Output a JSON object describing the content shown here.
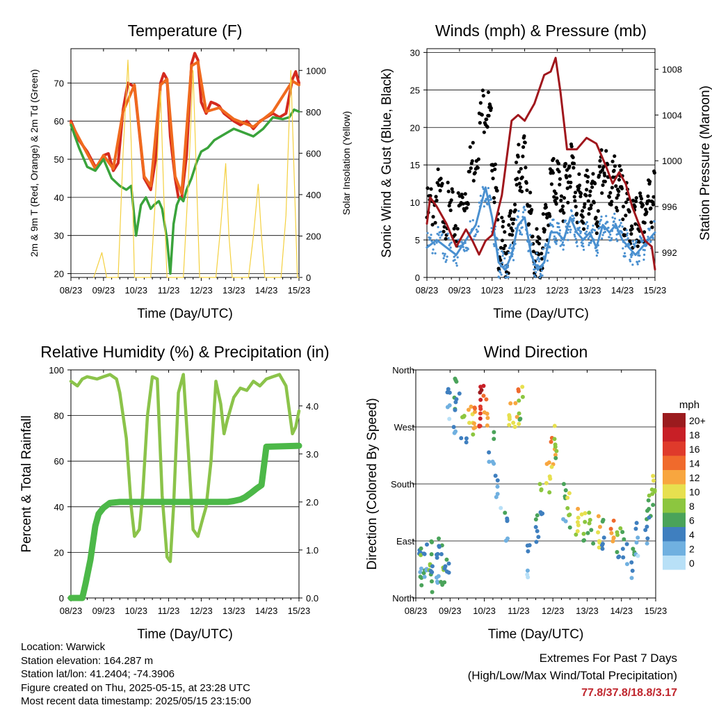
{
  "chart_data": [
    {
      "type": "line",
      "title": "Temperature (F)",
      "xlabel": "Time (Day/UTC)",
      "ylabel": "2m & 9m T (Red, Orange) & 2m Td (Green)",
      "ylabel_right": "Solar Insolation (Yellow)",
      "ylim": [
        19,
        79
      ],
      "ylim_right": [
        0,
        1105
      ],
      "yticks": [
        20,
        30,
        40,
        50,
        60,
        70
      ],
      "yticks_right": [
        0,
        200,
        400,
        600,
        800,
        1000
      ],
      "xticks": [
        "08/23",
        "09/23",
        "10/23",
        "11/23",
        "12/23",
        "13/23",
        "14/23",
        "15/23"
      ],
      "series": [
        {
          "name": "2m T",
          "color": "#d42a1f",
          "axis": "left",
          "x": [
            0,
            0.25,
            0.5,
            0.75,
            0.9,
            1.0,
            1.15,
            1.3,
            1.45,
            1.6,
            1.75,
            1.95,
            2.1,
            2.25,
            2.45,
            2.6,
            2.75,
            2.85,
            2.95,
            3.05,
            3.2,
            3.3,
            3.4,
            3.55,
            3.7,
            3.8,
            3.9,
            4.0,
            4.15,
            4.3,
            4.45,
            4.55,
            4.7,
            4.85,
            5.0,
            5.2,
            5.4,
            5.6,
            5.8,
            6.0,
            6.2,
            6.4,
            6.6,
            6.8,
            6.9,
            7.0
          ],
          "y": [
            60,
            55,
            52,
            48,
            49,
            51,
            51.5,
            47,
            49,
            63,
            70,
            69,
            57,
            45,
            42,
            50,
            70,
            72.5,
            71,
            56,
            45,
            40,
            40,
            51,
            75,
            77.8,
            76,
            65,
            62,
            65,
            64.5,
            64,
            62,
            61,
            60,
            59,
            60,
            58,
            60,
            61,
            62,
            61,
            62,
            71,
            73,
            70
          ]
        },
        {
          "name": "9m T",
          "color": "#f06a1e",
          "axis": "left",
          "x": [
            0,
            0.5,
            0.75,
            1.0,
            1.3,
            1.6,
            1.95,
            2.25,
            2.45,
            2.75,
            2.95,
            3.2,
            3.4,
            3.7,
            3.9,
            4.15,
            4.55,
            5.0,
            5.6,
            6.2,
            6.8,
            7.0
          ],
          "y": [
            59.5,
            51.5,
            47.5,
            51,
            47.5,
            62.5,
            69.5,
            45.5,
            43,
            69.5,
            71,
            45.5,
            41,
            74.5,
            75.5,
            62.5,
            63.5,
            60.5,
            58.5,
            62.5,
            70.5,
            69.5
          ]
        },
        {
          "name": "2m Td",
          "color": "#3aa33b",
          "axis": "left",
          "x": [
            0,
            0.25,
            0.5,
            0.75,
            1.0,
            1.25,
            1.5,
            1.7,
            1.85,
            2.0,
            2.15,
            2.3,
            2.45,
            2.55,
            2.7,
            2.8,
            2.95,
            3.05,
            3.15,
            3.25,
            3.35,
            3.45,
            3.55,
            3.7,
            3.85,
            4.0,
            4.2,
            4.4,
            4.6,
            4.8,
            5.0,
            5.3,
            5.6,
            5.9,
            6.2,
            6.5,
            6.7,
            6.85,
            7.0
          ],
          "y": [
            59,
            53,
            48,
            47,
            50,
            45,
            43,
            42,
            43,
            30,
            38,
            40,
            37,
            38,
            39,
            37,
            29,
            20,
            33,
            38,
            40,
            39,
            42,
            45,
            49,
            52,
            53,
            55,
            56,
            57,
            58,
            57,
            56,
            58,
            61,
            60.5,
            61,
            63,
            62.5
          ]
        },
        {
          "name": "Solar Insolation",
          "color": "#f4d03f",
          "axis": "right",
          "x": [
            0.7,
            0.95,
            1.1,
            1.25,
            1.45,
            1.6,
            1.75,
            1.85,
            1.95,
            2.1,
            2.25,
            2.45,
            2.6,
            2.75,
            2.85,
            2.95,
            3.1,
            3.25,
            3.45,
            3.6,
            3.75,
            3.85,
            3.95,
            4.1,
            4.25,
            4.45,
            4.6,
            4.75,
            4.85,
            4.95,
            5.1,
            5.25,
            5.45,
            5.6,
            5.75,
            5.85,
            5.95,
            6.1,
            6.25,
            6.45,
            6.6,
            6.75,
            6.85,
            6.95,
            7.0
          ],
          "y": [
            0,
            120,
            0,
            0,
            0,
            600,
            1050,
            650,
            0,
            0,
            0,
            0,
            400,
            900,
            400,
            0,
            0,
            0,
            0,
            450,
            1000,
            500,
            0,
            0,
            0,
            0,
            250,
            550,
            200,
            0,
            0,
            0,
            0,
            200,
            450,
            200,
            0,
            0,
            0,
            0,
            300,
            1000,
            500,
            0,
            0
          ]
        }
      ]
    },
    {
      "type": "scatter",
      "title": "Winds (mph) & Pressure (mb)",
      "xlabel": "Time (Day/UTC)",
      "ylabel": "Sonic Wind & Gust (Blue, Black)",
      "ylabel_right": "Station Pressure (Maroon)",
      "ylim": [
        0,
        30.5
      ],
      "ylim_right": [
        989.8,
        1009.8
      ],
      "yticks": [
        0,
        5,
        10,
        15,
        20,
        25,
        30
      ],
      "yticks_right": [
        992,
        996,
        1000,
        1004,
        1008
      ],
      "xticks": [
        "08/23",
        "09/23",
        "10/23",
        "11/23",
        "12/23",
        "13/23",
        "14/23",
        "15/23"
      ],
      "series": [
        {
          "name": "Gust",
          "color": "#000000",
          "x": [
            0,
            0.3,
            0.6,
            0.9,
            1.2,
            1.5,
            1.8,
            2.0,
            2.2,
            2.4,
            2.6,
            2.8,
            3.0,
            3.2,
            3.4,
            3.6,
            3.8,
            4.0,
            4.2,
            4.4,
            4.6,
            4.8,
            5.0,
            5.2,
            5.4,
            5.6,
            5.8,
            6.0,
            6.2,
            6.4,
            6.6,
            6.8,
            7.0
          ],
          "y": [
            8,
            11,
            9,
            7,
            12,
            17,
            24,
            18,
            5,
            3,
            6,
            14,
            16,
            6,
            2,
            5,
            12,
            13,
            10,
            16,
            11,
            9,
            12,
            8,
            15,
            12,
            13,
            10,
            8,
            7,
            8,
            10,
            11
          ]
        },
        {
          "name": "Sonic Wind",
          "color": "#4a90d0",
          "x": [
            0,
            0.3,
            0.6,
            0.9,
            1.2,
            1.5,
            1.8,
            2.0,
            2.2,
            2.4,
            2.6,
            2.8,
            3.0,
            3.2,
            3.4,
            3.6,
            3.8,
            4.0,
            4.2,
            4.4,
            4.6,
            4.8,
            5.0,
            5.2,
            5.4,
            5.6,
            5.8,
            6.0,
            6.2,
            6.4,
            6.6,
            6.8,
            7.0
          ],
          "y": [
            4,
            5,
            4,
            3,
            5,
            7,
            12,
            8,
            2,
            1,
            3,
            7,
            8,
            3,
            1,
            2,
            6,
            6,
            5,
            8,
            6,
            5,
            6,
            4,
            7,
            6,
            7,
            5,
            4,
            3,
            4,
            5,
            6
          ]
        },
        {
          "name": "Station Pressure",
          "color": "#a0161c",
          "axis": "right",
          "x": [
            0,
            0.1,
            0.3,
            0.6,
            0.9,
            1.2,
            1.4,
            1.6,
            1.8,
            2.0,
            2.3,
            2.6,
            2.8,
            3.0,
            3.3,
            3.6,
            3.8,
            3.95,
            4.1,
            4.3,
            4.6,
            4.9,
            5.2,
            5.5,
            5.7,
            5.9,
            6.1,
            6.3,
            6.5,
            6.7,
            6.9,
            7.0
          ],
          "y": [
            994.5,
            996.8,
            996,
            994.5,
            992.5,
            994,
            993,
            991.8,
            993,
            993.5,
            997,
            1003.5,
            1004,
            1003.5,
            1005,
            1007.5,
            1007.8,
            1009,
            1006,
            1001,
            1001,
            1002,
            1001.5,
            999.5,
            998,
            999,
            998,
            996,
            994.5,
            993,
            992.5,
            990.5
          ]
        }
      ]
    },
    {
      "type": "line",
      "title": "Relative Humidity (%) & Precipitation (in)",
      "xlabel": "Time (Day/UTC)",
      "ylabel": "Percent & Total Rainfall",
      "ylim": [
        0,
        100
      ],
      "ylim_right": [
        0,
        4.75
      ],
      "yticks": [
        0,
        20,
        40,
        60,
        80,
        100
      ],
      "yticks_right": [
        "0.0",
        "1.0",
        "2.0",
        "3.0",
        "4.0"
      ],
      "xticks": [
        "08/23",
        "09/23",
        "10/23",
        "11/23",
        "12/23",
        "13/23",
        "14/23",
        "15/23"
      ],
      "series": [
        {
          "name": "Relative Humidity",
          "color": "#8bc34a",
          "x": [
            0,
            0.2,
            0.35,
            0.5,
            0.8,
            1.0,
            1.2,
            1.4,
            1.5,
            1.7,
            1.85,
            1.95,
            2.1,
            2.2,
            2.35,
            2.5,
            2.65,
            2.8,
            2.95,
            3.05,
            3.15,
            3.3,
            3.45,
            3.6,
            3.75,
            3.9,
            4.05,
            4.15,
            4.3,
            4.45,
            4.6,
            4.7,
            4.8,
            5.0,
            5.2,
            5.4,
            5.6,
            5.8,
            6.0,
            6.2,
            6.4,
            6.6,
            6.8,
            6.9,
            7.0
          ],
          "y": [
            95,
            93,
            96,
            97,
            96,
            97,
            98,
            96,
            90,
            70,
            40,
            27,
            30,
            45,
            80,
            97,
            96,
            45,
            18,
            16,
            40,
            90,
            98,
            65,
            30,
            27,
            35,
            40,
            60,
            95,
            85,
            72,
            78,
            88,
            92,
            91,
            95,
            93,
            96,
            97,
            98,
            93,
            72,
            75,
            82
          ]
        },
        {
          "name": "Total Rainfall",
          "color": "#4cb848",
          "axis": "right",
          "x": [
            0,
            0.35,
            0.45,
            0.6,
            0.75,
            0.85,
            1.0,
            1.2,
            1.5,
            2.0,
            3.0,
            4.0,
            4.6,
            4.8,
            5.0,
            5.2,
            5.35,
            5.45,
            5.55,
            5.7,
            5.85,
            6.0,
            7.0
          ],
          "y": [
            0,
            0,
            0.3,
            0.8,
            1.5,
            1.75,
            1.88,
            1.98,
            2.0,
            2.0,
            2.0,
            2.0,
            2.0,
            2.0,
            2.02,
            2.05,
            2.1,
            2.15,
            2.2,
            2.28,
            2.35,
            3.15,
            3.17
          ]
        }
      ]
    },
    {
      "type": "scatter",
      "title": "Wind Direction",
      "xlabel": "Time (Day/UTC)",
      "ylabel": "Direction (Colored By Speed)",
      "yticks": [
        "North",
        "East",
        "South",
        "West",
        "North"
      ],
      "ylim": [
        0,
        360
      ],
      "xticks": [
        "08/23",
        "09/23",
        "10/23",
        "11/23",
        "12/23",
        "13/23",
        "14/23",
        "15/23"
      ],
      "legend_title": "mph",
      "legend_labels": [
        "20+",
        "18",
        "16",
        "14",
        "12",
        "10",
        "8",
        "6",
        "4",
        "2",
        "0"
      ],
      "legend_colors": [
        "#9b1b1e",
        "#c81f26",
        "#df3a2b",
        "#f06a2c",
        "#f8a63f",
        "#e7e04f",
        "#8cc63f",
        "#4aa35a",
        "#3f7fbf",
        "#70b0e0",
        "#b8e0f7"
      ],
      "points": [
        {
          "x": 0.1,
          "dir": 70,
          "speed": 4
        },
        {
          "x": 0.2,
          "dir": 40,
          "speed": 6
        },
        {
          "x": 0.3,
          "dir": 55,
          "speed": 2
        },
        {
          "x": 0.4,
          "dir": 30,
          "speed": 6
        },
        {
          "x": 0.5,
          "dir": 60,
          "speed": 4
        },
        {
          "x": 0.6,
          "dir": 45,
          "speed": 2
        },
        {
          "x": 0.7,
          "dir": 75,
          "speed": 4
        },
        {
          "x": 0.8,
          "dir": 35,
          "speed": 6
        },
        {
          "x": 0.9,
          "dir": 50,
          "speed": 4
        },
        {
          "x": 1.0,
          "dir": 310,
          "speed": 2
        },
        {
          "x": 1.1,
          "dir": 290,
          "speed": 4
        },
        {
          "x": 1.2,
          "dir": 330,
          "speed": 4
        },
        {
          "x": 1.4,
          "dir": 275,
          "speed": 6
        },
        {
          "x": 1.6,
          "dir": 285,
          "speed": 10
        },
        {
          "x": 1.75,
          "dir": 290,
          "speed": 12
        },
        {
          "x": 1.85,
          "dir": 300,
          "speed": 18
        },
        {
          "x": 1.95,
          "dir": 305,
          "speed": 16
        },
        {
          "x": 2.05,
          "dir": 290,
          "speed": 12
        },
        {
          "x": 2.2,
          "dir": 240,
          "speed": 4
        },
        {
          "x": 2.4,
          "dir": 170,
          "speed": 2
        },
        {
          "x": 2.6,
          "dir": 120,
          "speed": 4
        },
        {
          "x": 2.8,
          "dir": 285,
          "speed": 10
        },
        {
          "x": 2.95,
          "dir": 300,
          "speed": 12
        },
        {
          "x": 3.05,
          "dir": 310,
          "speed": 8
        },
        {
          "x": 3.3,
          "dir": 60,
          "speed": 2
        },
        {
          "x": 3.5,
          "dir": 110,
          "speed": 4
        },
        {
          "x": 3.7,
          "dir": 160,
          "speed": 6
        },
        {
          "x": 3.85,
          "dir": 190,
          "speed": 10
        },
        {
          "x": 4.0,
          "dir": 230,
          "speed": 12
        },
        {
          "x": 4.1,
          "dir": 250,
          "speed": 8
        },
        {
          "x": 4.3,
          "dir": 150,
          "speed": 4
        },
        {
          "x": 4.5,
          "dir": 140,
          "speed": 8
        },
        {
          "x": 4.7,
          "dir": 125,
          "speed": 10
        },
        {
          "x": 4.9,
          "dir": 115,
          "speed": 8
        },
        {
          "x": 5.1,
          "dir": 105,
          "speed": 6
        },
        {
          "x": 5.3,
          "dir": 100,
          "speed": 10
        },
        {
          "x": 5.5,
          "dir": 95,
          "speed": 4
        },
        {
          "x": 5.7,
          "dir": 100,
          "speed": 12
        },
        {
          "x": 5.9,
          "dir": 90,
          "speed": 6
        },
        {
          "x": 6.1,
          "dir": 80,
          "speed": 4
        },
        {
          "x": 6.3,
          "dir": 60,
          "speed": 4
        },
        {
          "x": 6.5,
          "dir": 90,
          "speed": 2
        },
        {
          "x": 6.7,
          "dir": 110,
          "speed": 4
        },
        {
          "x": 6.85,
          "dir": 150,
          "speed": 6
        },
        {
          "x": 6.95,
          "dir": 170,
          "speed": 8
        }
      ]
    }
  ],
  "footer": {
    "location": "Location: Warwick",
    "elevation": "Station elevation: 164.287 m",
    "latlon": "Station lat/lon: 41.2404; -74.3906",
    "created": "Figure created on Thu, 2025-05-15, at 23:28 UTC",
    "timestamp": "Most recent data timestamp: 2025/05/15 23:15:00"
  },
  "extremes": {
    "title": "Extremes For Past 7 Days",
    "subtitle": "(High/Low/Max Wind/Total Precipitation)",
    "values": "77.8/37.8/18.8/3.17",
    "color": "#c0262d"
  }
}
